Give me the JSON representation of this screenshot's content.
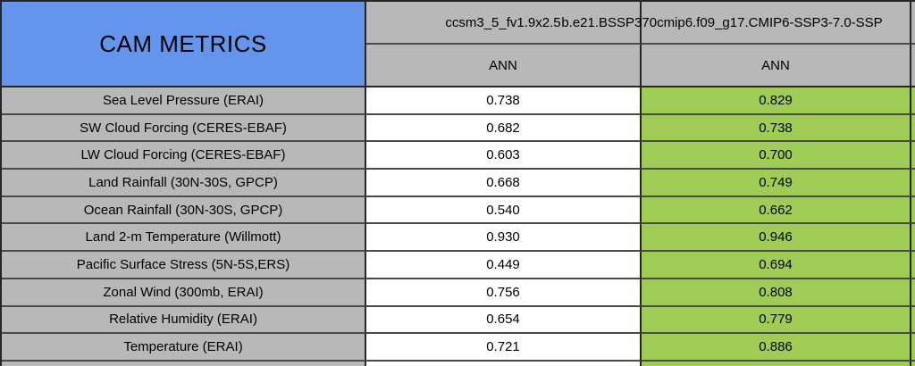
{
  "title": "CAM METRICS",
  "columns": [
    {
      "model": "ccsm3_5_fv1.9x2.5",
      "season": "ANN"
    },
    {
      "model": "b.e21.BSSP370cmip6.f09_g17.CMIP6-SSP3-7.0-SSP",
      "season": "ANN"
    }
  ],
  "rows": [
    {
      "metric": "Sea Level Pressure (ERAI)",
      "run1": "0.738",
      "run2": "0.829"
    },
    {
      "metric": "SW Cloud Forcing (CERES-EBAF)",
      "run1": "0.682",
      "run2": "0.738"
    },
    {
      "metric": "LW Cloud Forcing (CERES-EBAF)",
      "run1": "0.603",
      "run2": "0.700"
    },
    {
      "metric": "Land Rainfall (30N-30S, GPCP)",
      "run1": "0.668",
      "run2": "0.749"
    },
    {
      "metric": "Ocean Rainfall (30N-30S, GPCP)",
      "run1": "0.540",
      "run2": "0.662"
    },
    {
      "metric": "Land 2-m Temperature (Willmott)",
      "run1": "0.930",
      "run2": "0.946"
    },
    {
      "metric": "Pacific Surface Stress (5N-5S,ERS)",
      "run1": "0.449",
      "run2": "0.694"
    },
    {
      "metric": "Zonal Wind (300mb, ERAI)",
      "run1": "0.756",
      "run2": "0.808"
    },
    {
      "metric": "Relative Humidity (ERAI)",
      "run1": "0.654",
      "run2": "0.779"
    },
    {
      "metric": "Temperature (ERAI)",
      "run1": "0.721",
      "run2": "0.886"
    }
  ],
  "colors": {
    "title_blue": "#6495ed",
    "header_gray": "#b8b8b8",
    "highlight_green": "#9ecc55",
    "plain_white": "#ffffff",
    "grid_line": "#262626"
  },
  "chart_data": {
    "type": "table",
    "title": "CAM METRICS",
    "categories": [
      "Sea Level Pressure (ERAI)",
      "SW Cloud Forcing (CERES-EBAF)",
      "LW Cloud Forcing (CERES-EBAF)",
      "Land Rainfall (30N-30S, GPCP)",
      "Ocean Rainfall (30N-30S, GPCP)",
      "Land 2-m Temperature (Willmott)",
      "Pacific Surface Stress (5N-5S,ERS)",
      "Zonal Wind (300mb, ERAI)",
      "Relative Humidity (ERAI)",
      "Temperature (ERAI)"
    ],
    "series": [
      {
        "name": "ccsm3_5_fv1.9x2.5 (ANN)",
        "values": [
          0.738,
          0.682,
          0.603,
          0.668,
          0.54,
          0.93,
          0.449,
          0.756,
          0.654,
          0.721
        ]
      },
      {
        "name": "b.e21.BSSP370cmip6.f09_g17.CMIP6-SSP3-7.0-SSP (ANN)",
        "values": [
          0.829,
          0.738,
          0.7,
          0.749,
          0.662,
          0.946,
          0.694,
          0.808,
          0.779,
          0.886
        ]
      }
    ],
    "layout": {
      "second_series_highlighted": true,
      "grid": true,
      "legend_position": "none"
    }
  }
}
